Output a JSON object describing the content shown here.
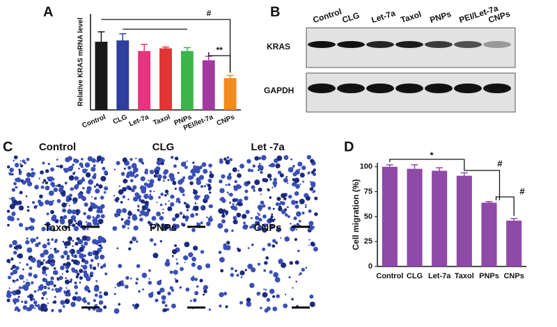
{
  "chart_data": [
    {
      "type": "bar",
      "panel": "A",
      "ylabel": "Relative KRAS mRNA level",
      "categories": [
        "Control",
        "CLG",
        "Let-7a",
        "Taxol",
        "PNPs",
        "PEI/let-7a",
        "CNPs"
      ],
      "values": [
        1.03,
        1.05,
        0.89,
        0.93,
        0.89,
        0.75,
        0.48
      ],
      "errors": [
        0.15,
        0.1,
        0.1,
        0.02,
        0.05,
        0.06,
        0.04
      ],
      "colors": [
        "#1a1a1a",
        "#2f3f9e",
        "#e8337d",
        "#e23434",
        "#3cb44a",
        "#a2399e",
        "#f28a1e"
      ],
      "ylim": [
        0,
        1.45
      ],
      "annotations": [
        "#",
        "**"
      ]
    },
    {
      "type": "bar",
      "panel": "D",
      "ylabel": "Cell migration (%)",
      "categories": [
        "Control",
        "CLG",
        "Let-7a",
        "Taxol",
        "PNPs",
        "CNPs"
      ],
      "values": [
        100,
        98,
        96,
        91,
        64,
        46
      ],
      "errors": [
        2,
        4,
        3,
        3,
        1,
        2
      ],
      "color": "#8e4aa6",
      "ylim": [
        0,
        104
      ],
      "yticks": [
        0,
        25,
        50,
        75,
        100
      ],
      "annotations": [
        "*",
        "#",
        "#"
      ]
    }
  ],
  "blot": {
    "panel": "B",
    "lanes": [
      "Control",
      "CLG",
      "Let-7a",
      "Taxol",
      "PNPs",
      "PEI/Let-7a",
      "CNPs"
    ],
    "rows": [
      "KRAS",
      "GAPDH"
    ]
  },
  "micrographs": {
    "panel": "C",
    "images": [
      "Control",
      "CLG",
      "Let -7a",
      "Taxol",
      "PNPs",
      "CNPs"
    ]
  }
}
